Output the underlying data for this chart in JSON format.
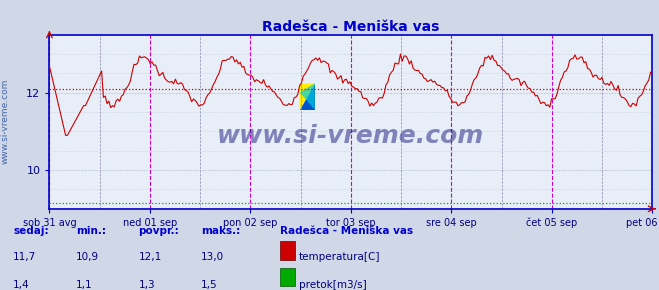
{
  "title": "Radešca - Meniška vas",
  "title_color": "#0000cc",
  "bg_color": "#d0d8e8",
  "plot_bg_color": "#e8eef8",
  "grid_color": "#c0c8d8",
  "border_color": "#0000cc",
  "x_labels": [
    "sob 31 avg",
    "ned 01 sep",
    "pon 02 sep",
    "tor 03 sep",
    "sre 04 sep",
    "čet 05 sep",
    "pet 06 sep"
  ],
  "x_ticks_norm": [
    0.0,
    0.1667,
    0.3333,
    0.5,
    0.6667,
    0.8333,
    1.0
  ],
  "y_min": 9.0,
  "y_max": 13.5,
  "y_ticks": [
    10,
    12
  ],
  "temp_color": "#cc0000",
  "flow_color": "#00aa00",
  "temp_avg_line_color": "#cc0000",
  "flow_avg_line_color": "#00aa00",
  "vline_color_magenta": "#cc00cc",
  "vline_color_gray": "#8888aa",
  "watermark": "www.si-vreme.com",
  "watermark_color": "#1a1a7e",
  "ylabel_text": "www.si-vreme.com",
  "stat_labels": [
    "sedaj:",
    "min.:",
    "povpr.:",
    "maks.:"
  ],
  "temp_stats": [
    "11,7",
    "10,9",
    "12,1",
    "13,0"
  ],
  "flow_stats": [
    "1,4",
    "1,1",
    "1,3",
    "1,5"
  ],
  "legend_title": "Radešca - Meniška vas",
  "legend_temp": "temperatura[C]",
  "legend_flow": "pretok[m3/s]",
  "temp_avg": 12.1,
  "flow_avg_display": 9.15,
  "n_points": 336
}
